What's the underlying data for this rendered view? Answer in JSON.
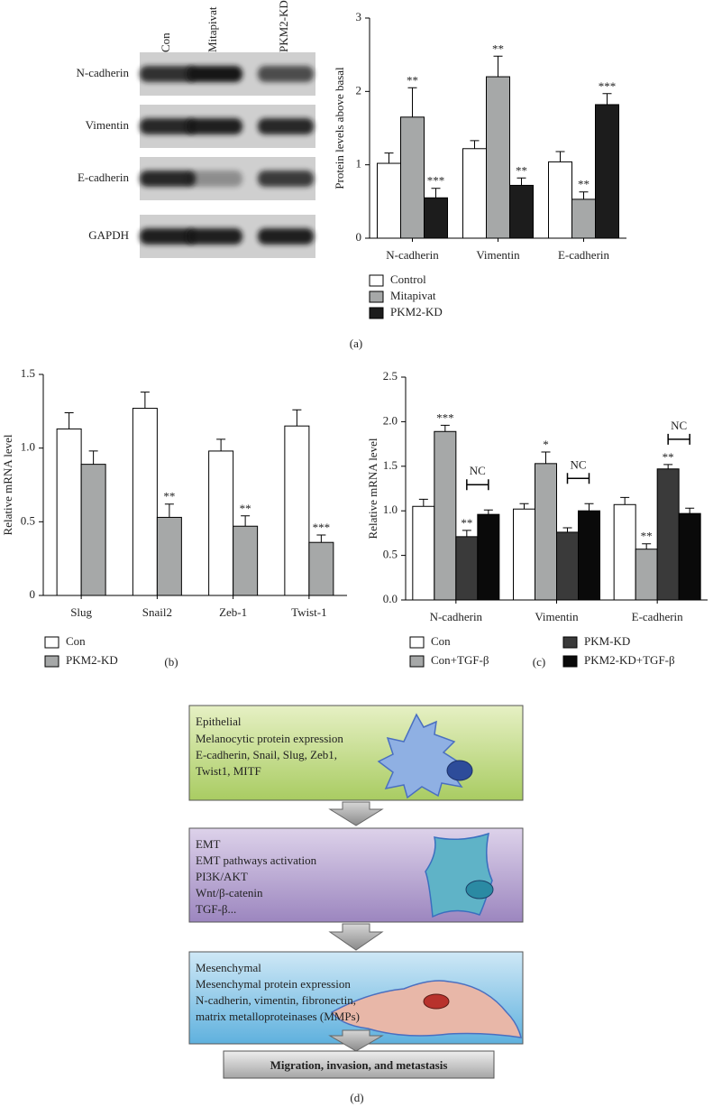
{
  "blot": {
    "lanes": [
      "Con",
      "Mitapivat",
      "PKM2-KD"
    ],
    "proteins": [
      "N-cadherin",
      "Vimentin",
      "E-cadherin",
      "GAPDH"
    ]
  },
  "panel_labels": [
    "(a)",
    "(b)",
    "(c)",
    "(d)"
  ],
  "chart_data": [
    {
      "type": "bar",
      "y_label": "Protein levels above basal",
      "categories": [
        "N-cadherin",
        "Vimentin",
        "E-cadherin"
      ],
      "ylim": [
        0,
        3
      ],
      "yticks": [
        0,
        1,
        2,
        3
      ],
      "series": [
        {
          "name": "Control",
          "color": "#ffffff",
          "values": [
            1.02,
            1.22,
            1.04
          ],
          "errors": [
            0.14,
            0.11,
            0.14
          ]
        },
        {
          "name": "Mitapivat",
          "color": "#a6a8a8",
          "values": [
            1.65,
            2.2,
            0.53
          ],
          "errors": [
            0.4,
            0.28,
            0.1
          ],
          "annotations": [
            "**",
            "**",
            "**"
          ]
        },
        {
          "name": "PKM2-KD",
          "color": "#1c1c1c",
          "values": [
            0.55,
            0.72,
            1.82
          ],
          "errors": [
            0.13,
            0.1,
            0.15
          ],
          "annotations": [
            "***",
            "**",
            "***"
          ]
        }
      ]
    },
    {
      "type": "bar",
      "y_label": "Relative mRNA level",
      "categories": [
        "Slug",
        "Snail2",
        "Zeb-1",
        "Twist-1"
      ],
      "ylim": [
        0,
        1.5
      ],
      "yticks": [
        0,
        0.5,
        {
          "value": 1,
          "label": "1.0"
        },
        1.5
      ],
      "series": [
        {
          "name": "Con",
          "color": "#ffffff",
          "values": [
            1.13,
            1.27,
            0.98,
            1.15
          ],
          "errors": [
            0.11,
            0.11,
            0.08,
            0.11
          ]
        },
        {
          "name": "PKM2-KD",
          "color": "#a6a8a8",
          "values": [
            0.89,
            0.53,
            0.47,
            0.36
          ],
          "errors": [
            0.09,
            0.09,
            0.07,
            0.05
          ],
          "annotations": [
            null,
            "**",
            "**",
            "***"
          ]
        }
      ]
    },
    {
      "type": "bar",
      "y_label": "Relative mRNA level",
      "categories": [
        "N-cadherin",
        "Vimentin",
        "E-cadherin"
      ],
      "ylim": [
        0,
        2.5
      ],
      "yticks": [
        {
          "value": 0,
          "label": "0.0"
        },
        0.5,
        {
          "value": 1,
          "label": "1.0"
        },
        1.5,
        {
          "value": 2,
          "label": "2.0"
        },
        2.5
      ],
      "bracket_labels": [
        "NC",
        "NC",
        "NC"
      ],
      "series": [
        {
          "name": "Con",
          "color": "#ffffff",
          "values": [
            1.05,
            1.02,
            1.07
          ],
          "errors": [
            0.08,
            0.06,
            0.08
          ]
        },
        {
          "name": "Con+TGF-β",
          "color": "#a6a8a8",
          "values": [
            1.89,
            1.53,
            0.57
          ],
          "errors": [
            0.07,
            0.13,
            0.06
          ],
          "annotations": [
            "***",
            "*",
            "**"
          ]
        },
        {
          "name": "PKM-KD",
          "color": "#3a3a3a",
          "values": [
            0.71,
            0.76,
            1.47
          ],
          "errors": [
            0.07,
            0.05,
            0.05
          ],
          "annotations": [
            "**",
            null,
            "**"
          ]
        },
        {
          "name": "PKM2-KD+TGF-β",
          "color": "#0a0a0a",
          "values": [
            0.96,
            1.0,
            0.97
          ],
          "errors": [
            0.05,
            0.08,
            0.06
          ]
        }
      ]
    }
  ],
  "diagram": {
    "stages": [
      {
        "title": "Epithelial",
        "lines": [
          "Melanocytic protein expression",
          "E-cadherin, Snail, Slug, Zeb1,",
          "Twist1, MITF"
        ]
      },
      {
        "title": "EMT",
        "lines": [
          "EMT pathways activation",
          "PI3K/AKT",
          "Wnt/β-catenin",
          "TGF-β..."
        ]
      },
      {
        "title": "Mesenchymal",
        "lines": [
          "Mesenchymal protein expression",
          "N-cadherin, vimentin, fibronectin,",
          "matrix metalloproteinases (MMPs)"
        ]
      }
    ],
    "outcome": "Migration, invasion, and metastasis"
  }
}
